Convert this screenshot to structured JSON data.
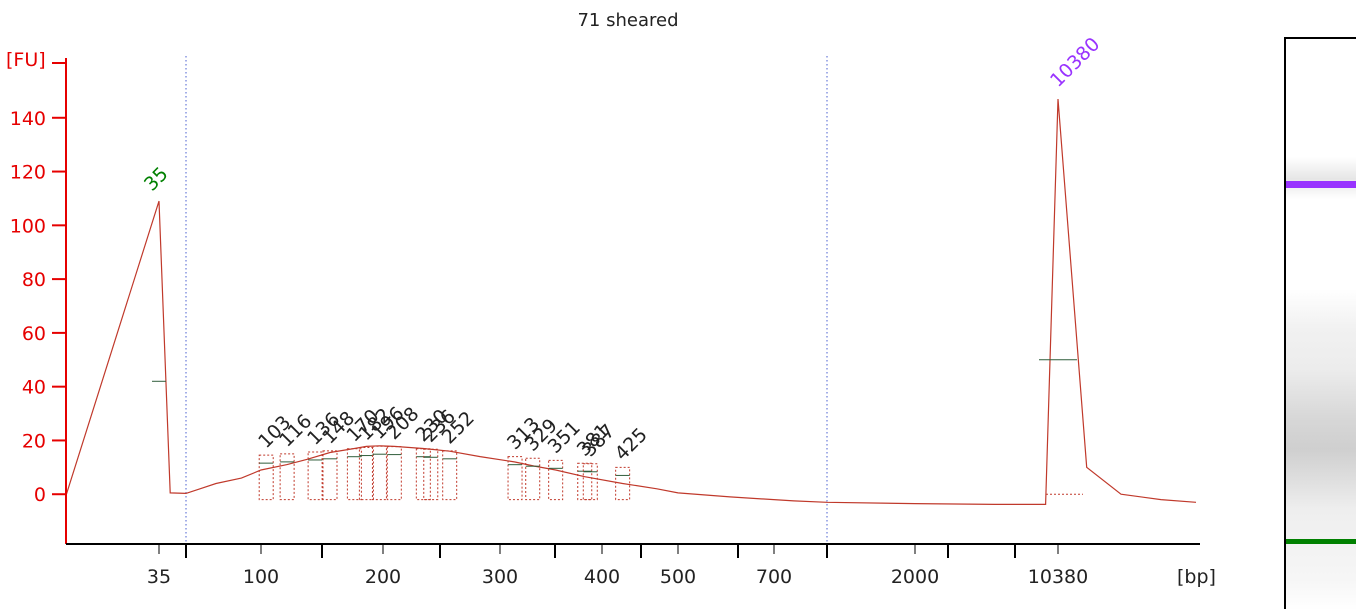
{
  "chart_data": {
    "type": "line",
    "title": "71 sheared",
    "ylabel": "[FU]",
    "xlabel": "[bp]",
    "ylim": [
      -20,
      160
    ],
    "yticks": [
      0,
      20,
      40,
      60,
      80,
      100,
      120,
      140
    ],
    "x_tick_labels": [
      "35",
      "100",
      "200",
      "300",
      "400",
      "500",
      "700",
      "2000",
      "10380"
    ],
    "marker_labels": [
      "35",
      "10380"
    ],
    "fragment_labels": [
      "103",
      "116",
      "136",
      "148",
      "170",
      "182",
      "196",
      "208",
      "230",
      "236",
      "252",
      "313",
      "329",
      "351",
      "381",
      "387",
      "425"
    ],
    "lower_marker": {
      "size_bp": 35,
      "peak_fu": 109,
      "color": "#008000"
    },
    "upper_marker": {
      "size_bp": 10380,
      "peak_fu": 147,
      "color": "#9933ff"
    },
    "trace_color": "#c0392b",
    "series": [
      {
        "x": [
          "30",
          "35",
          "37",
          "40",
          "50",
          "60",
          "80",
          "100",
          "116",
          "130",
          "148",
          "170",
          "182",
          "196",
          "208",
          "230",
          "252",
          "280",
          "313",
          "330",
          "351",
          "381",
          "425",
          "470",
          "500",
          "600",
          "800",
          "1000",
          "2000",
          "5000",
          "9000",
          "10380",
          "11500",
          "13000",
          "15000",
          "17000"
        ],
        "values": [
          -0.5,
          109,
          0.5,
          0.3,
          2,
          4,
          6,
          9,
          11,
          13,
          15.5,
          17,
          17.8,
          18,
          17.8,
          17,
          16,
          14,
          12,
          10.5,
          9,
          6.5,
          4,
          2,
          0.5,
          -1,
          -2.5,
          -3,
          -3.5,
          -3.8,
          -3.8,
          147,
          10,
          0,
          -2,
          -3
        ]
      }
    ]
  },
  "gel": {
    "upper_band_color": "#9933ff",
    "lower_band_color": "#008000"
  }
}
